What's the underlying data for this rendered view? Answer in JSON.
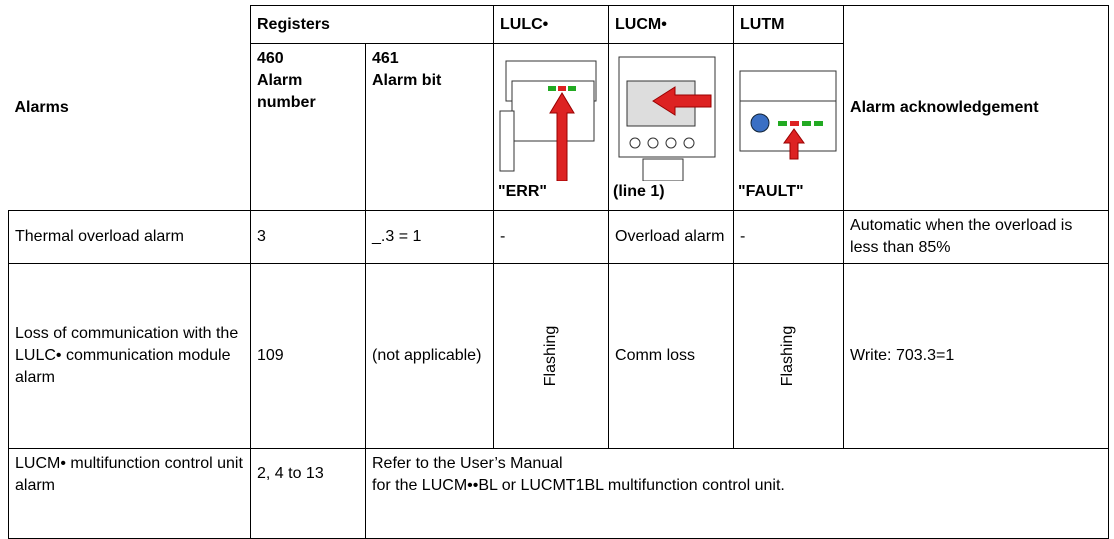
{
  "table": {
    "header": {
      "alarms": "Alarms",
      "registers": "Registers",
      "lulc": "LULC•",
      "lucm": "LUCM•",
      "lutm": "LUTM",
      "reg460": [
        "460",
        "Alarm number"
      ],
      "reg461": [
        "461",
        "Alarm bit"
      ],
      "lulc_display": "\"ERR\"",
      "lucm_display": "(line 1)",
      "lutm_display": "\"FAULT\"",
      "ack": "Alarm acknowledgement"
    },
    "rows": [
      [
        "Thermal overload alarm",
        "3",
        "_.3 = 1",
        "-",
        "Overload alarm",
        "-",
        "Automatic when the overload is less than 85%"
      ],
      [
        "Loss of communication with the LULC• communication module alarm",
        "109",
        "(not applicable)",
        "Flashing",
        "Comm loss",
        "Flashing",
        "Write: 703.3=1"
      ],
      [
        "LUCM• multifunction control unit alarm",
        "2, 4 to 13",
        [
          "Refer to the User’s Manual",
          "for the LUCM••BL or LUCMT1BL multifunction control unit."
        ]
      ]
    ]
  }
}
